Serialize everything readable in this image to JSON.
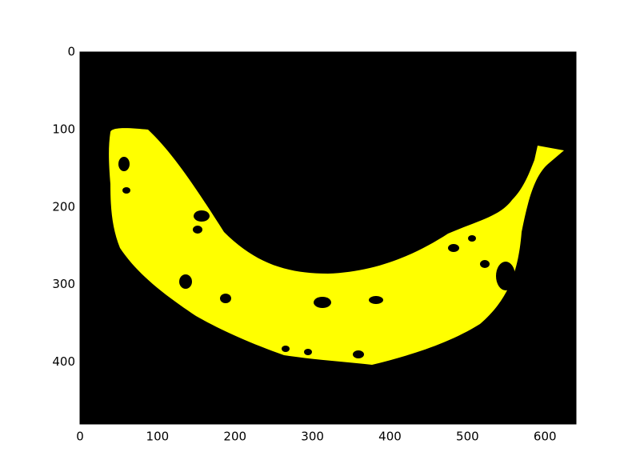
{
  "chart_data": {
    "type": "image",
    "xlim": [
      0,
      640
    ],
    "ylim": [
      480,
      0
    ],
    "xticks": [
      0,
      100,
      200,
      300,
      400,
      500,
      600
    ],
    "yticks": [
      0,
      100,
      200,
      300,
      400
    ]
  }
}
